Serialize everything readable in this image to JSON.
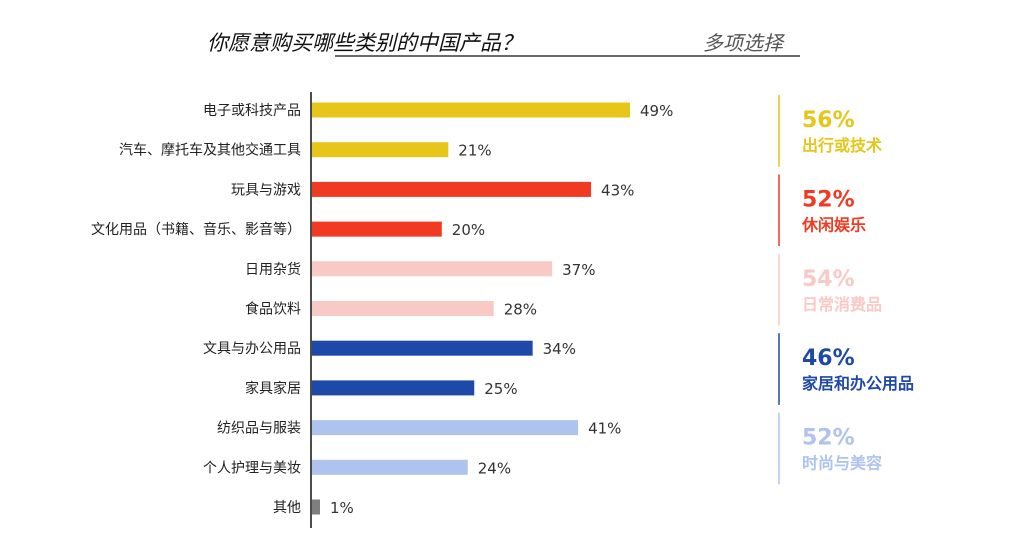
{
  "chart_data": {
    "type": "bar",
    "orientation": "horizontal",
    "title": "你愿意购买哪些类别的中国产品？",
    "subtitle": "多项选择",
    "categories": [
      "电子或科技产品",
      "汽车、摩托车及其他交通工具",
      "玩具与游戏",
      "文化用品（书籍、音乐、影音等）",
      "日用杂货",
      "食品饮料",
      "文具与办公用品",
      "家具家居",
      "纺织品与服装",
      "个人护理与美妆",
      "其他"
    ],
    "values": [
      49,
      21,
      43,
      20,
      37,
      28,
      34,
      25,
      41,
      24,
      1
    ],
    "value_labels": [
      "49%",
      "21%",
      "43%",
      "20%",
      "37%",
      "28%",
      "34%",
      "25%",
      "41%",
      "24%",
      "1%"
    ],
    "bar_colors": [
      "#E6C619",
      "#E6C619",
      "#F03A22",
      "#F03A22",
      "#F9C9C5",
      "#F9C9C5",
      "#1F49A8",
      "#1F49A8",
      "#AFC3EF",
      "#AFC3EF",
      "#7F7F7F"
    ],
    "xlim": [
      0,
      49
    ],
    "groups": [
      {
        "pct": "56%",
        "label": "出行或技术",
        "color": "#E6C619",
        "rows": [
          0,
          1
        ]
      },
      {
        "pct": "52%",
        "label": "休闲娱乐",
        "color": "#F03A22",
        "rows": [
          2,
          3
        ]
      },
      {
        "pct": "54%",
        "label": "日常消费品",
        "color": "#F9C9C5",
        "rows": [
          4,
          5
        ]
      },
      {
        "pct": "46%",
        "label": "家居和办公用品",
        "color": "#1F49A8",
        "rows": [
          6,
          7
        ]
      },
      {
        "pct": "52%",
        "label": "时尚与美容",
        "color": "#AFC3EF",
        "rows": [
          8,
          9
        ]
      }
    ],
    "grid": false,
    "legend": "none"
  }
}
